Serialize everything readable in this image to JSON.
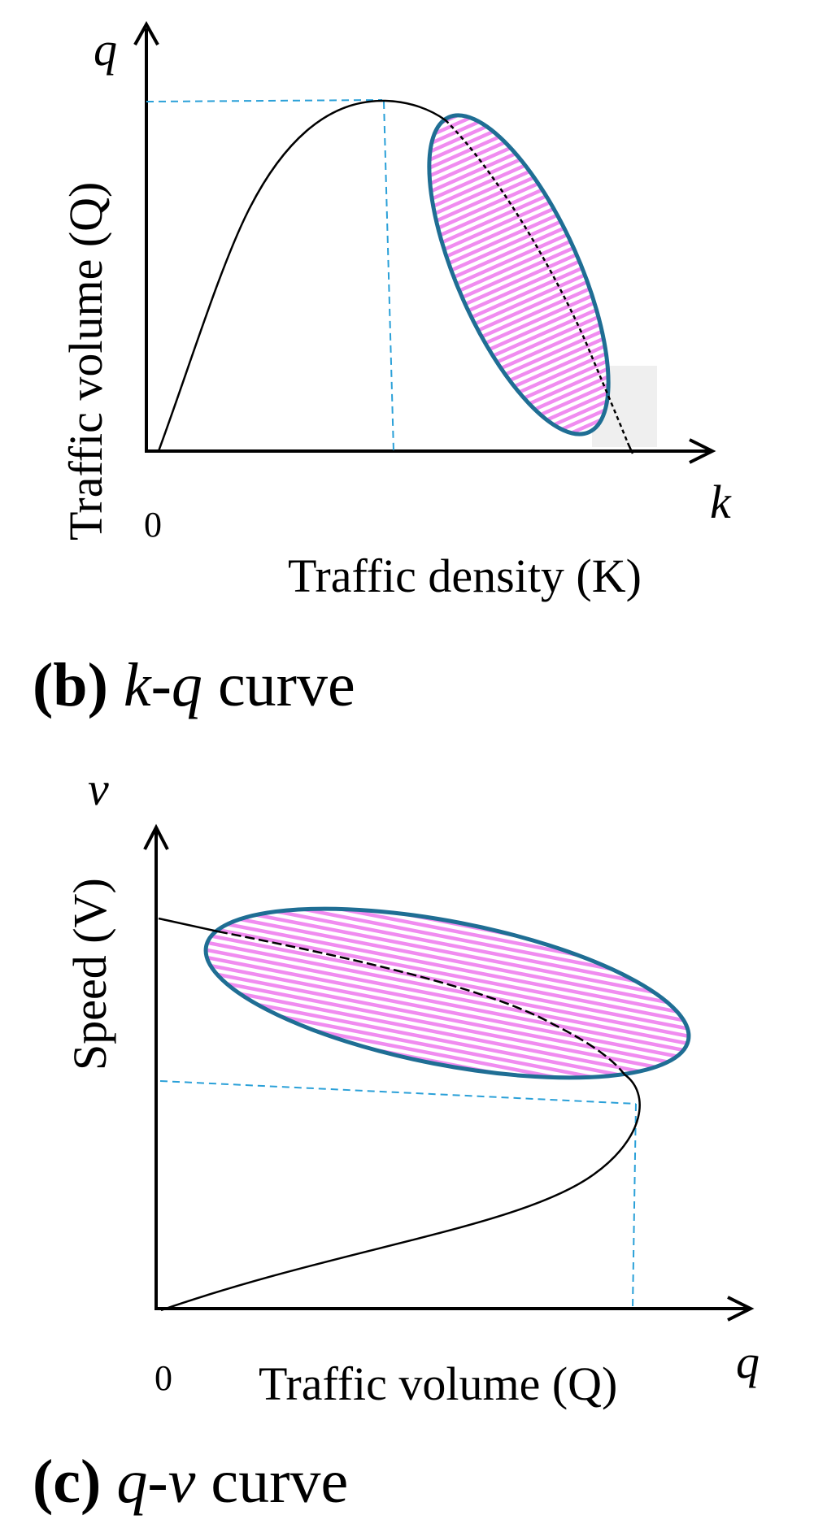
{
  "panel_b": {
    "y_symbol": "q",
    "x_symbol": "k",
    "origin": "0",
    "ylabel": "Traffic volume (Q)",
    "xlabel": "Traffic density (K)",
    "caption_letter": "(b)",
    "caption_math": "k-q",
    "caption_word": "curve"
  },
  "panel_c": {
    "y_symbol": "v",
    "x_symbol": "q",
    "origin": "0",
    "ylabel": "Speed (V)",
    "xlabel": "Traffic volume (Q)",
    "caption_letter": "(c)",
    "caption_math": "q-v",
    "caption_word": "curve"
  },
  "colors": {
    "axis": "#000000",
    "curve": "#000000",
    "reference_dashed": "#2aa0d8",
    "ellipse_stroke": "#1f6e94",
    "hatch_pink": "#f08cf0"
  }
}
